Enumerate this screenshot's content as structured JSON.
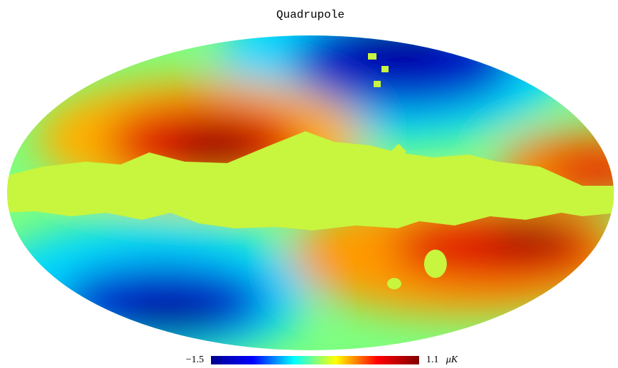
{
  "title": "Quadrupole",
  "colorbar": {
    "min": {
      "value": -1.5,
      "label": "−1.5"
    },
    "max": 1.1,
    "unit": "μK",
    "colors": [
      "#00008f",
      "#0000ff",
      "#00ffff",
      "#ffff00",
      "#ff0000",
      "#800000"
    ]
  }
}
